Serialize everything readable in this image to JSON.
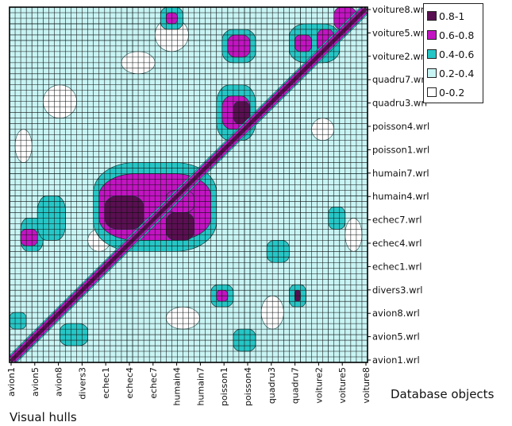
{
  "chart_data": {
    "type": "heatmap",
    "x_axis_title": "Database objects",
    "y_axis_title": "Visual hulls",
    "x_tick_labels": [
      "avion1",
      "avion5",
      "avion8",
      "divers3",
      "echec1",
      "echec4",
      "echec7",
      "humain4",
      "humain7",
      "poisson1",
      "poisson4",
      "quadru3",
      "quadru7",
      "voiture2",
      "voiture5",
      "voiture8"
    ],
    "y_tick_labels": [
      "voiture8.wrl",
      "voiture5.wrl",
      "voiture2.wrl",
      "quadru7.wrl",
      "quadru3.wrl",
      "poisson4.wrl",
      "poisson1.wrl",
      "humain7.wrl",
      "humain4.wrl",
      "echec7.wrl",
      "echec4.wrl",
      "echec1.wrl",
      "divers3.wrl",
      "avion8.wrl",
      "avion5.wrl",
      "avion1.wrl"
    ],
    "legend": [
      {
        "label": "0.8-1",
        "color": "#5a0f52"
      },
      {
        "label": "0.6-0.8",
        "color": "#c214c2"
      },
      {
        "label": "0.4-0.6",
        "color": "#26c6c6"
      },
      {
        "label": "0.2-0.4",
        "color": "#c8f4f4"
      },
      {
        "label": "0-0.2",
        "color": "#ffffff"
      }
    ],
    "grid": true,
    "diagonal": "0.8-1",
    "high_similarity_blocks": [
      {
        "x_from": "echec1",
        "x_to": "echec7",
        "y_from": "echec1.wrl",
        "y_to": "echec7.wrl",
        "range": "0.8-1"
      },
      {
        "x_from": "humain4",
        "x_to": "humain7",
        "y_from": "echec1.wrl",
        "y_to": "echec7.wrl",
        "range": "0.8-1"
      },
      {
        "x_from": "poisson1",
        "x_to": "poisson4",
        "y_from": "poisson1.wrl",
        "y_to": "poisson4.wrl",
        "range": "0.8-1"
      },
      {
        "x_from": "poisson1",
        "x_to": "poisson4",
        "y_from": "voiture2.wrl",
        "y_to": "voiture5.wrl",
        "range": "0.6-0.8"
      },
      {
        "x_from": "voiture2",
        "x_to": "voiture8",
        "y_from": "voiture2.wrl",
        "y_to": "voiture8.wrl",
        "range": "0.6-0.8"
      }
    ]
  }
}
